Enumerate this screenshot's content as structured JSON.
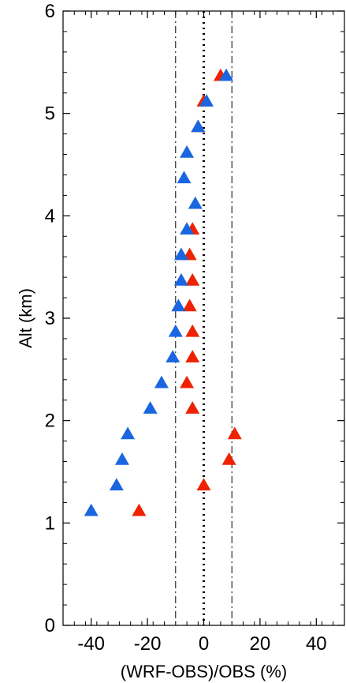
{
  "chart_data": {
    "type": "scatter",
    "title": "",
    "xlabel": "(WRF-OBS)/OBS (%)",
    "ylabel": "Alt (km)",
    "xlim": [
      -50,
      50
    ],
    "ylim": [
      0,
      6
    ],
    "x_ticks": [
      -40,
      -20,
      0,
      20,
      40
    ],
    "y_ticks": [
      0,
      1,
      2,
      3,
      4,
      5,
      6
    ],
    "x_tick_labels": [
      "-40",
      "-20",
      "0",
      "20",
      "40"
    ],
    "y_tick_labels": [
      "0",
      "1",
      "2",
      "3",
      "4",
      "5",
      "6"
    ],
    "grid": false,
    "marker": "triangle-up",
    "reference_lines": [
      {
        "x": -10,
        "style": "dash-dot"
      },
      {
        "x": 0,
        "style": "dotted"
      },
      {
        "x": 10,
        "style": "dash-dot"
      }
    ],
    "series": [
      {
        "color": "#ee2200",
        "points": [
          {
            "x": -23,
            "y": 1.12
          },
          {
            "x": 0,
            "y": 1.37
          },
          {
            "x": 9,
            "y": 1.62
          },
          {
            "x": 11,
            "y": 1.87
          },
          {
            "x": -4,
            "y": 2.12
          },
          {
            "x": -6,
            "y": 2.37
          },
          {
            "x": -4,
            "y": 2.62
          },
          {
            "x": -4,
            "y": 2.87
          },
          {
            "x": -5,
            "y": 3.12
          },
          {
            "x": -4,
            "y": 3.37
          },
          {
            "x": -5,
            "y": 3.62
          },
          {
            "x": -4,
            "y": 3.87
          },
          {
            "x": -2,
            "y": 4.87
          },
          {
            "x": 0,
            "y": 5.12
          },
          {
            "x": 6,
            "y": 5.37
          }
        ]
      },
      {
        "color": "#1a66e0",
        "points": [
          {
            "x": -40,
            "y": 1.12
          },
          {
            "x": -31,
            "y": 1.37
          },
          {
            "x": -29,
            "y": 1.62
          },
          {
            "x": -27,
            "y": 1.87
          },
          {
            "x": -19,
            "y": 2.12
          },
          {
            "x": -15,
            "y": 2.37
          },
          {
            "x": -11,
            "y": 2.62
          },
          {
            "x": -10,
            "y": 2.87
          },
          {
            "x": -9,
            "y": 3.12
          },
          {
            "x": -8,
            "y": 3.37
          },
          {
            "x": -8,
            "y": 3.62
          },
          {
            "x": -6,
            "y": 3.87
          },
          {
            "x": -3,
            "y": 4.12
          },
          {
            "x": -7,
            "y": 4.37
          },
          {
            "x": -6,
            "y": 4.62
          },
          {
            "x": -2,
            "y": 4.87
          },
          {
            "x": 1,
            "y": 5.12
          },
          {
            "x": 8,
            "y": 5.37
          }
        ]
      }
    ]
  }
}
